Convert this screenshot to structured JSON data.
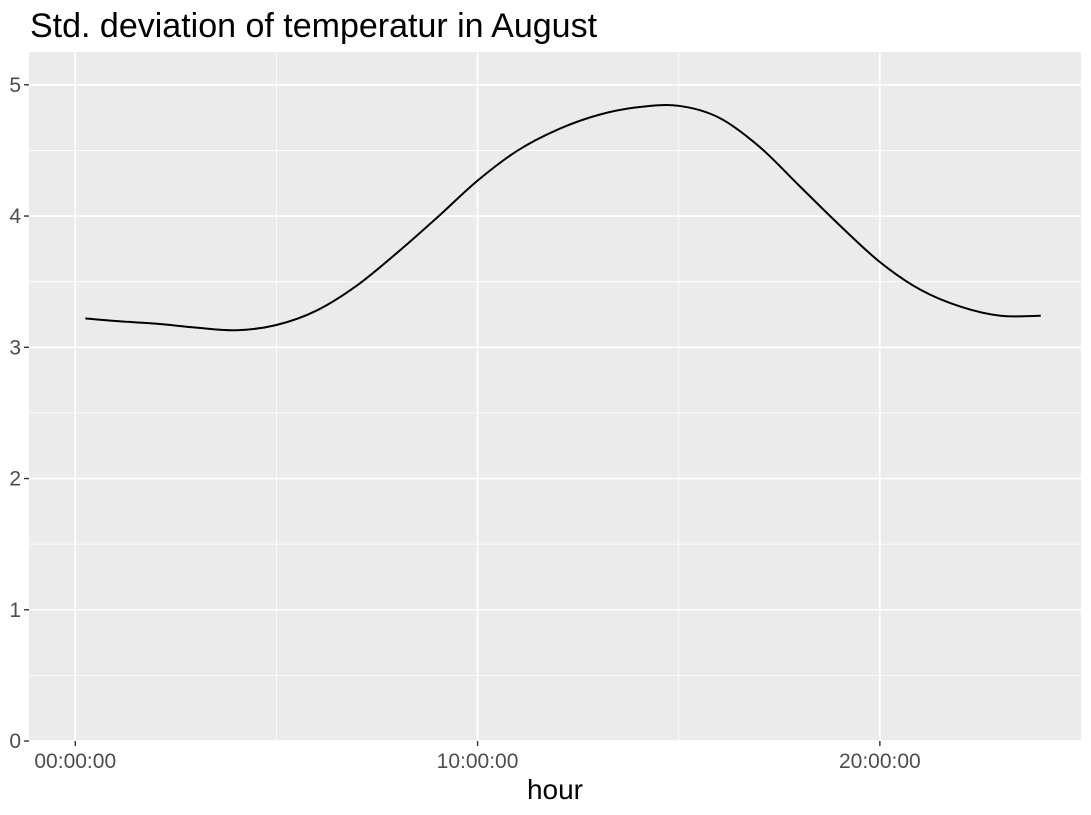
{
  "chart_data": {
    "type": "line",
    "title": "Std. deviation of temperatur in August",
    "xlabel": "hour",
    "ylabel": "",
    "xlim_hours": [
      -1.15,
      25.0
    ],
    "ylim": [
      0,
      5.25
    ],
    "x_ticks": [
      {
        "hour": 0,
        "label": "00:00:00"
      },
      {
        "hour": 10,
        "label": "10:00:00"
      },
      {
        "hour": 20,
        "label": "20:00:00"
      }
    ],
    "y_ticks": [
      {
        "value": 0,
        "label": "0"
      },
      {
        "value": 1,
        "label": "1"
      },
      {
        "value": 2,
        "label": "2"
      },
      {
        "value": 3,
        "label": "3"
      },
      {
        "value": 4,
        "label": "4"
      },
      {
        "value": 5,
        "label": "5"
      }
    ],
    "grid": true,
    "colors": {
      "panel": "#ebebeb",
      "grid": "#ffffff",
      "line": "#000000"
    },
    "series": [
      {
        "x_hours": [
          0.25,
          1,
          2,
          3,
          4,
          5,
          6,
          7,
          8,
          9,
          10,
          11,
          12,
          13,
          14,
          15,
          16,
          17,
          18,
          19,
          20,
          21,
          22,
          23,
          24
        ],
        "values": [
          3.22,
          3.2,
          3.18,
          3.15,
          3.13,
          3.17,
          3.28,
          3.47,
          3.72,
          3.99,
          4.27,
          4.5,
          4.66,
          4.77,
          4.83,
          4.84,
          4.75,
          4.53,
          4.23,
          3.93,
          3.65,
          3.44,
          3.31,
          3.24,
          3.24
        ]
      }
    ]
  }
}
